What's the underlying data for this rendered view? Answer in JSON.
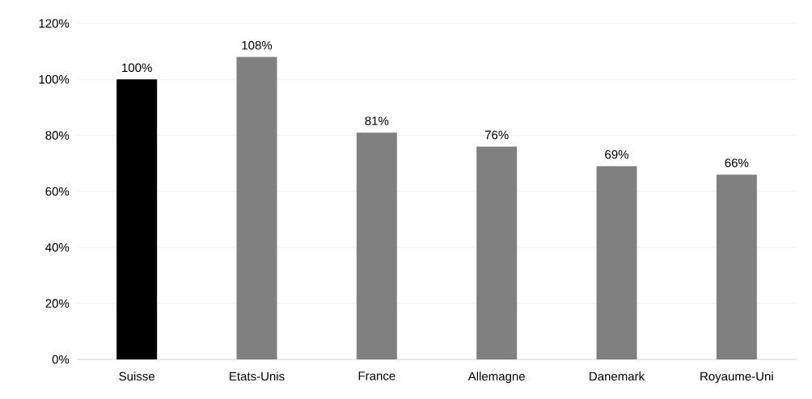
{
  "chart_data": {
    "type": "bar",
    "categories": [
      "Suisse",
      "Etats-Unis",
      "France",
      "Allemagne",
      "Danemark",
      "Royaume-Uni"
    ],
    "values": [
      100,
      108,
      81,
      76,
      69,
      66
    ],
    "colors": [
      "#000000",
      "#808080",
      "#808080",
      "#808080",
      "#808080",
      "#808080"
    ],
    "value_labels": [
      "100%",
      "108%",
      "81%",
      "76%",
      "69%",
      "66%"
    ],
    "ylim": [
      0,
      120
    ],
    "yticks": [
      {
        "value": 0,
        "label": "0%"
      },
      {
        "value": 20,
        "label": "20%"
      },
      {
        "value": 40,
        "label": "40%"
      },
      {
        "value": 60,
        "label": "60%"
      },
      {
        "value": 80,
        "label": "80%"
      },
      {
        "value": 100,
        "label": "100%"
      },
      {
        "value": 120,
        "label": "120%"
      }
    ],
    "grid": "y"
  }
}
